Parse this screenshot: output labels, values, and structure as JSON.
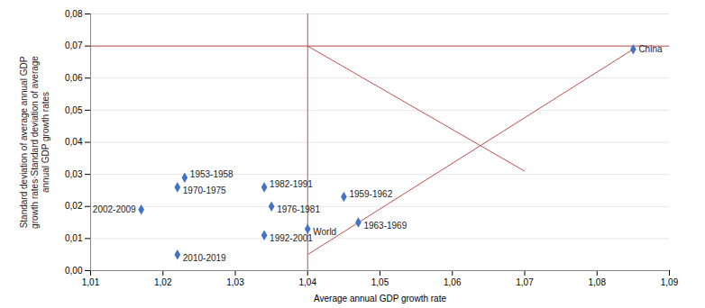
{
  "chart_data": {
    "type": "scatter",
    "xlabel": "Average annual GDP growth rate",
    "ylabel": "Standard deviation of average annual GDP\ngrowth rates·Standard deviation of average\nannual GDP growth rates",
    "xlim": [
      1.01,
      1.09
    ],
    "ylim": [
      0,
      0.08
    ],
    "xticks": [
      {
        "value": 1.01,
        "label": "1,01"
      },
      {
        "value": 1.02,
        "label": "1,02"
      },
      {
        "value": 1.03,
        "label": "1,03"
      },
      {
        "value": 1.04,
        "label": "1,04"
      },
      {
        "value": 1.05,
        "label": "1,05"
      },
      {
        "value": 1.06,
        "label": "1,06"
      },
      {
        "value": 1.07,
        "label": "1,07"
      },
      {
        "value": 1.08,
        "label": "1,08"
      },
      {
        "value": 1.09,
        "label": "1,09"
      }
    ],
    "yticks": [
      {
        "value": 0,
        "label": "0,00"
      },
      {
        "value": 0.01,
        "label": "0,01"
      },
      {
        "value": 0.02,
        "label": "0,02"
      },
      {
        "value": 0.03,
        "label": "0,03"
      },
      {
        "value": 0.04,
        "label": "0,04"
      },
      {
        "value": 0.05,
        "label": "0,05"
      },
      {
        "value": 0.06,
        "label": "0,06"
      },
      {
        "value": 0.07,
        "label": "0,07"
      },
      {
        "value": 0.08,
        "label": "0,08"
      }
    ],
    "labels": [
      "2002-2009",
      "1953-1958",
      "1970-1975",
      "2010-2019",
      "1982-1991",
      "1976-1981",
      "1992-2001",
      "World",
      "1959-1962",
      "1963-1969",
      "China"
    ],
    "x": [
      1.017,
      1.023,
      1.022,
      1.022,
      1.034,
      1.035,
      1.034,
      1.04,
      1.045,
      1.047,
      1.085
    ],
    "values": [
      0.019,
      0.029,
      0.026,
      0.005,
      0.026,
      0.02,
      0.011,
      0.013,
      0.023,
      0.015,
      0.069
    ],
    "color": "#4472C4",
    "marker": "diamond",
    "reference_lines": {
      "color": "#C0504D",
      "x": [
        1.04
      ],
      "y": [
        0.07
      ],
      "segments": [
        {
          "x1": 1.04,
          "y1": 0.07,
          "x2": 1.07,
          "y2": 0.031
        },
        {
          "x1": 1.04,
          "y1": 0.005,
          "x2": 1.085,
          "y2": 0.069
        }
      ]
    },
    "grid": "y"
  }
}
